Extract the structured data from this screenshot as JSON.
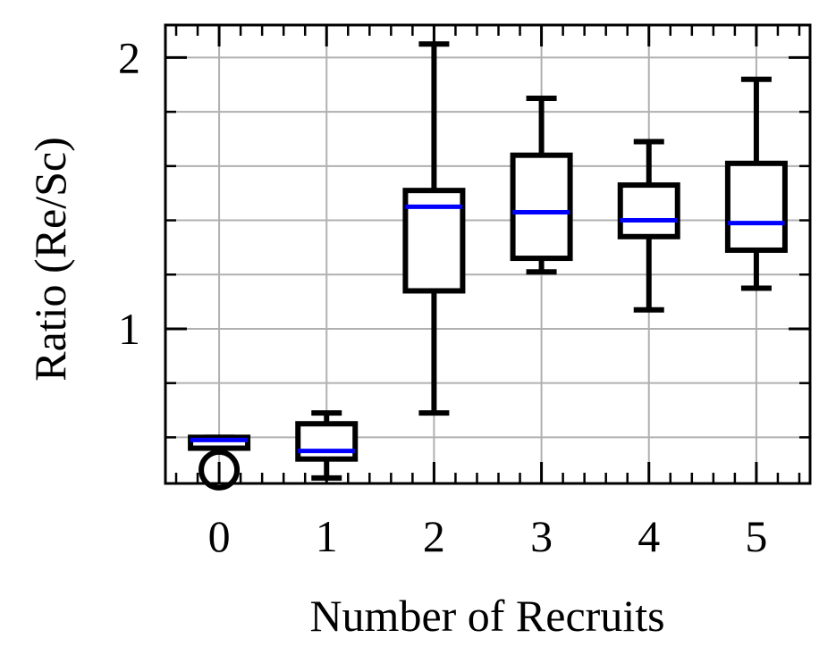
{
  "chart_data": {
    "type": "box",
    "xlabel": "Number of Recruits",
    "ylabel": "Ratio (Re/Sc)",
    "xlim": [
      -0.5,
      5.5
    ],
    "ylim": [
      0.43,
      2.12
    ],
    "x_ticks": [
      0,
      1,
      2,
      3,
      4,
      5
    ],
    "y_major_ticks": [
      1,
      2
    ],
    "y_minor_ticks": [
      0.6,
      0.8,
      1.2,
      1.4,
      1.6,
      1.8
    ],
    "grid": true,
    "box_color": "#000000",
    "median_color": "#0000ff",
    "grid_color": "#b0b0b0",
    "boxes": [
      {
        "x": 0,
        "whisker_low": 0.56,
        "q1": 0.56,
        "median": 0.59,
        "q3": 0.6,
        "whisker_high": 0.6,
        "outliers": [
          0.48
        ]
      },
      {
        "x": 1,
        "whisker_low": 0.45,
        "q1": 0.52,
        "median": 0.55,
        "q3": 0.65,
        "whisker_high": 0.69,
        "outliers": []
      },
      {
        "x": 2,
        "whisker_low": 0.69,
        "q1": 1.14,
        "median": 1.45,
        "q3": 1.51,
        "whisker_high": 2.05,
        "outliers": []
      },
      {
        "x": 3,
        "whisker_low": 1.21,
        "q1": 1.26,
        "median": 1.43,
        "q3": 1.64,
        "whisker_high": 1.85,
        "outliers": []
      },
      {
        "x": 4,
        "whisker_low": 1.07,
        "q1": 1.34,
        "median": 1.4,
        "q3": 1.53,
        "whisker_high": 1.69,
        "outliers": []
      },
      {
        "x": 5,
        "whisker_low": 1.15,
        "q1": 1.29,
        "median": 1.39,
        "q3": 1.61,
        "whisker_high": 1.92,
        "outliers": []
      }
    ]
  }
}
